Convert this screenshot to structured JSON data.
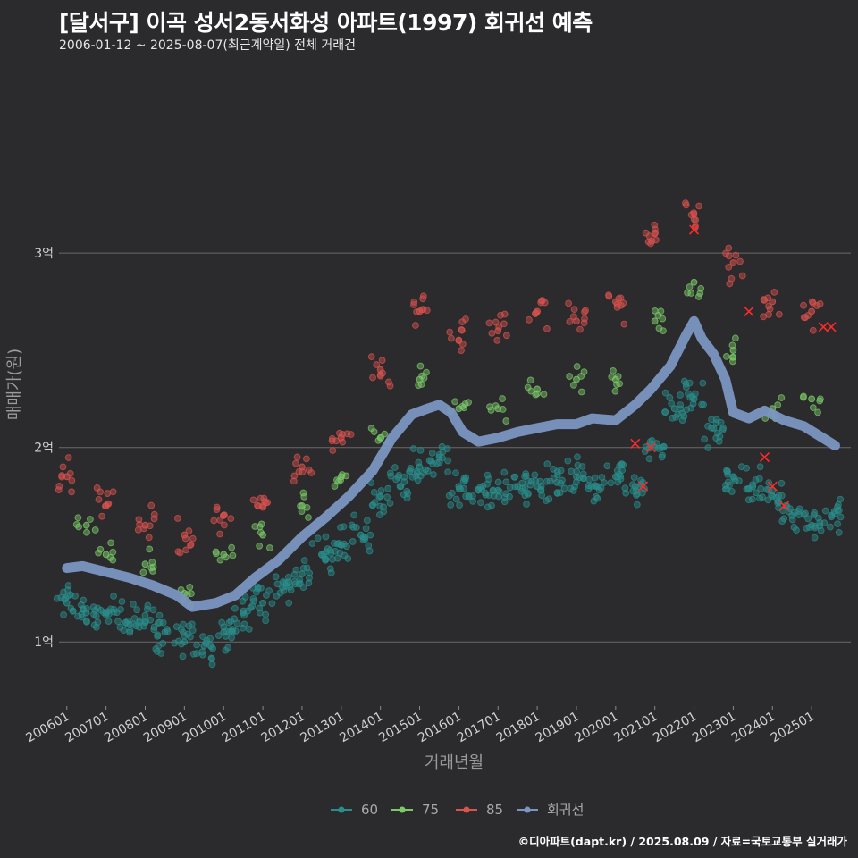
{
  "header": {
    "title": "[달서구] 이곡 성서2동서화성 아파트(1997) 회귀선 예측",
    "subtitle": "2006-01-12 ~ 2025-08-07(최근계약일) 전체 거래건"
  },
  "caption": "©디아파트(dapt.kr) / 2025.08.09 / 자료=국토교통부 실거래가",
  "colors": {
    "background": "#2b2a2c",
    "grid": "#6a6a6a",
    "s60": "#2a8f8c",
    "s75": "#7cc96a",
    "s85": "#d9534f",
    "regression": "#7b96c2",
    "cancel": "#ff2a2a"
  },
  "chart_data": {
    "type": "scatter",
    "xlabel": "거래년월",
    "ylabel": "매매가(원)",
    "x_range": [
      "2005-10",
      "2025-12"
    ],
    "y_range_eok": [
      0.67,
      3.98
    ],
    "y_ticks": [
      {
        "value": 1,
        "label": "1억"
      },
      {
        "value": 2,
        "label": "2억"
      },
      {
        "value": 3,
        "label": "3억"
      }
    ],
    "x_ticks": [
      "200601",
      "200701",
      "200801",
      "200901",
      "201001",
      "201101",
      "201201",
      "201301",
      "201401",
      "201501",
      "201601",
      "201701",
      "201801",
      "201901",
      "202001",
      "202101",
      "202201",
      "202301",
      "202401",
      "202501"
    ],
    "legend": [
      "60",
      "75",
      "85",
      "회귀선"
    ],
    "legend_position": "bottom",
    "grid": "horizontal",
    "series": [
      {
        "name": "60",
        "note": "60㎡ 전용면적 거래가 (억원)",
        "points": [
          [
            2006.0,
            1.2
          ],
          [
            2006.5,
            1.15
          ],
          [
            2007.0,
            1.15
          ],
          [
            2007.5,
            1.1
          ],
          [
            2008.0,
            1.1
          ],
          [
            2008.5,
            1.05
          ],
          [
            2009.0,
            1.0
          ],
          [
            2009.5,
            0.98
          ],
          [
            2010.0,
            1.05
          ],
          [
            2010.5,
            1.15
          ],
          [
            2011.0,
            1.2
          ],
          [
            2011.5,
            1.28
          ],
          [
            2012.0,
            1.35
          ],
          [
            2012.5,
            1.45
          ],
          [
            2013.0,
            1.5
          ],
          [
            2013.5,
            1.55
          ],
          [
            2014.0,
            1.75
          ],
          [
            2014.5,
            1.8
          ],
          [
            2015.0,
            1.9
          ],
          [
            2015.5,
            1.95
          ],
          [
            2016.0,
            1.8
          ],
          [
            2016.5,
            1.78
          ],
          [
            2017.0,
            1.78
          ],
          [
            2017.5,
            1.8
          ],
          [
            2018.0,
            1.8
          ],
          [
            2018.5,
            1.82
          ],
          [
            2019.0,
            1.85
          ],
          [
            2019.5,
            1.8
          ],
          [
            2020.0,
            1.85
          ],
          [
            2020.5,
            1.8
          ],
          [
            2021.0,
            2.0
          ],
          [
            2021.5,
            2.2
          ],
          [
            2022.0,
            2.25
          ],
          [
            2022.5,
            2.1
          ],
          [
            2023.0,
            1.85
          ],
          [
            2023.5,
            1.8
          ],
          [
            2024.0,
            1.75
          ],
          [
            2024.5,
            1.65
          ],
          [
            2025.0,
            1.6
          ],
          [
            2025.5,
            1.65
          ]
        ]
      },
      {
        "name": "75",
        "note": "75㎡ 전용면적 거래가 (억원)",
        "points": [
          [
            2006.5,
            1.6
          ],
          [
            2007.0,
            1.45
          ],
          [
            2008.0,
            1.4
          ],
          [
            2009.0,
            1.25
          ],
          [
            2010.0,
            1.45
          ],
          [
            2011.0,
            1.55
          ],
          [
            2012.0,
            1.7
          ],
          [
            2013.0,
            1.85
          ],
          [
            2014.0,
            2.05
          ],
          [
            2015.0,
            2.35
          ],
          [
            2016.0,
            2.2
          ],
          [
            2017.0,
            2.2
          ],
          [
            2018.0,
            2.3
          ],
          [
            2019.0,
            2.35
          ],
          [
            2020.0,
            2.35
          ],
          [
            2021.0,
            2.65
          ],
          [
            2022.0,
            2.85
          ],
          [
            2023.0,
            2.5
          ],
          [
            2024.0,
            2.2
          ],
          [
            2025.0,
            2.25
          ]
        ]
      },
      {
        "name": "85",
        "note": "85㎡ 전용면적 거래가 (억원)",
        "points": [
          [
            2006.0,
            1.85
          ],
          [
            2007.0,
            1.7
          ],
          [
            2008.0,
            1.6
          ],
          [
            2009.0,
            1.55
          ],
          [
            2010.0,
            1.65
          ],
          [
            2011.0,
            1.7
          ],
          [
            2012.0,
            1.9
          ],
          [
            2013.0,
            2.05
          ],
          [
            2014.0,
            2.4
          ],
          [
            2015.0,
            2.7
          ],
          [
            2016.0,
            2.55
          ],
          [
            2017.0,
            2.6
          ],
          [
            2018.0,
            2.7
          ],
          [
            2019.0,
            2.65
          ],
          [
            2020.0,
            2.75
          ],
          [
            2021.0,
            3.1
          ],
          [
            2022.0,
            3.2
          ],
          [
            2023.0,
            2.95
          ],
          [
            2024.0,
            2.75
          ],
          [
            2025.0,
            2.7
          ]
        ]
      }
    ],
    "regression": {
      "name": "회귀선",
      "points": [
        [
          2006.0,
          1.38
        ],
        [
          2006.4,
          1.39
        ],
        [
          2007.0,
          1.36
        ],
        [
          2007.6,
          1.33
        ],
        [
          2008.2,
          1.29
        ],
        [
          2008.8,
          1.24
        ],
        [
          2009.2,
          1.18
        ],
        [
          2009.8,
          1.2
        ],
        [
          2010.3,
          1.24
        ],
        [
          2010.8,
          1.33
        ],
        [
          2011.4,
          1.42
        ],
        [
          2012.0,
          1.54
        ],
        [
          2012.6,
          1.64
        ],
        [
          2013.2,
          1.75
        ],
        [
          2013.8,
          1.88
        ],
        [
          2014.3,
          2.05
        ],
        [
          2014.8,
          2.17
        ],
        [
          2015.2,
          2.2
        ],
        [
          2015.5,
          2.22
        ],
        [
          2015.8,
          2.18
        ],
        [
          2016.1,
          2.08
        ],
        [
          2016.5,
          2.03
        ],
        [
          2017.0,
          2.05
        ],
        [
          2017.5,
          2.08
        ],
        [
          2018.0,
          2.1
        ],
        [
          2018.5,
          2.12
        ],
        [
          2019.0,
          2.12
        ],
        [
          2019.4,
          2.15
        ],
        [
          2020.0,
          2.14
        ],
        [
          2020.5,
          2.22
        ],
        [
          2020.9,
          2.3
        ],
        [
          2021.4,
          2.42
        ],
        [
          2021.8,
          2.58
        ],
        [
          2022.0,
          2.65
        ],
        [
          2022.2,
          2.56
        ],
        [
          2022.5,
          2.48
        ],
        [
          2022.8,
          2.35
        ],
        [
          2023.0,
          2.18
        ],
        [
          2023.4,
          2.15
        ],
        [
          2023.8,
          2.19
        ],
        [
          2024.3,
          2.14
        ],
        [
          2024.8,
          2.11
        ],
        [
          2025.2,
          2.06
        ],
        [
          2025.6,
          2.01
        ]
      ]
    },
    "cancelled_deals": [
      [
        2020.5,
        2.02
      ],
      [
        2020.7,
        1.8
      ],
      [
        2020.9,
        2.0
      ],
      [
        2022.0,
        3.12
      ],
      [
        2023.4,
        2.7
      ],
      [
        2023.8,
        1.95
      ],
      [
        2024.0,
        1.8
      ],
      [
        2024.3,
        1.7
      ],
      [
        2025.3,
        2.62
      ],
      [
        2025.5,
        2.62
      ]
    ]
  }
}
